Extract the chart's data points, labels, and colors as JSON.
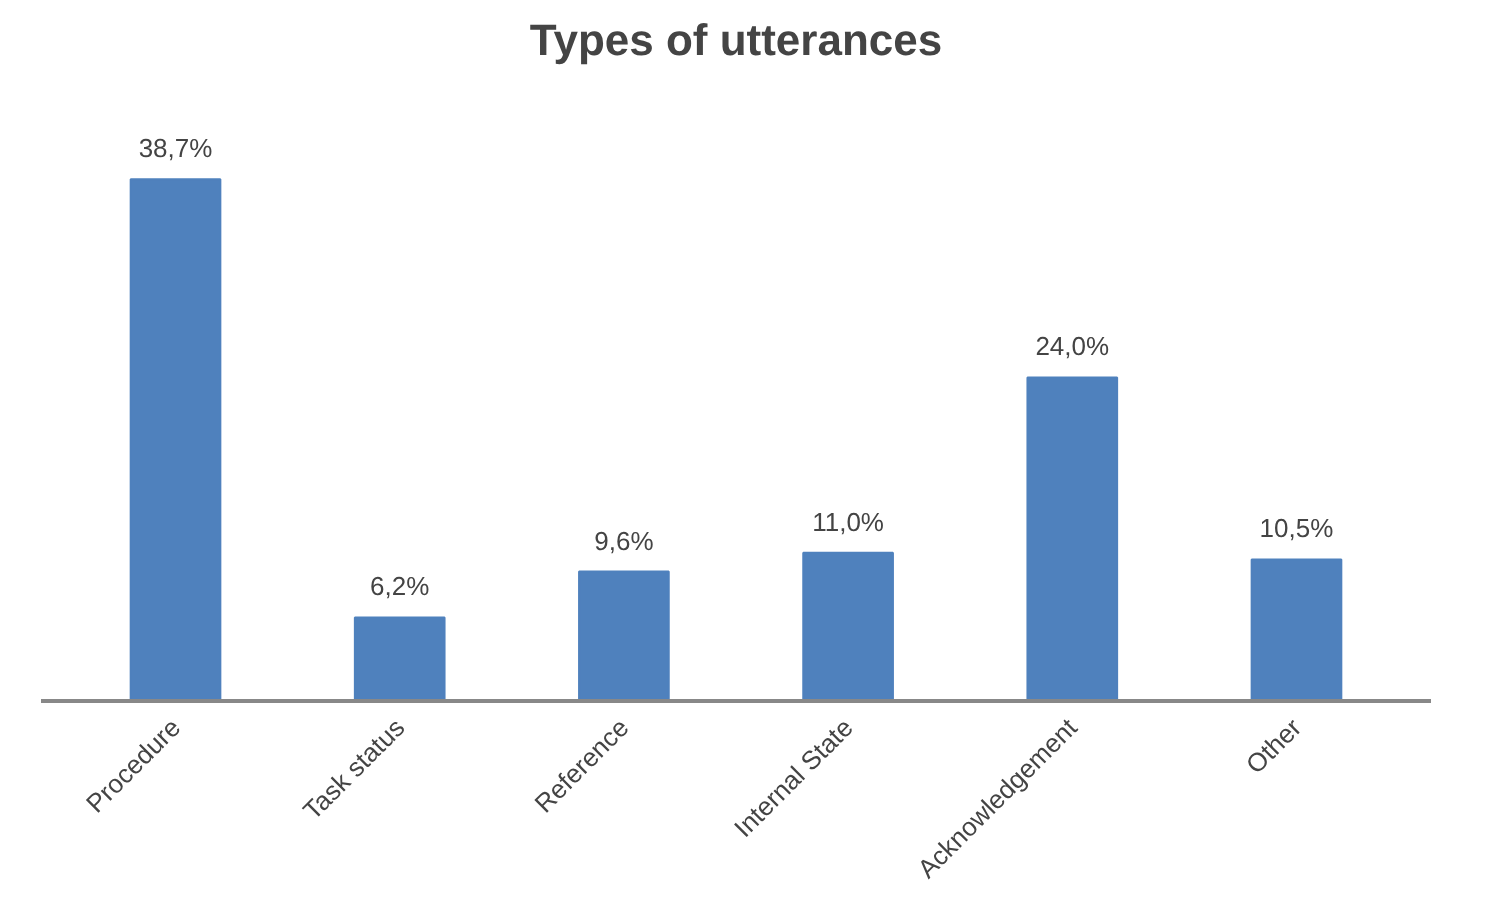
{
  "chart_data": {
    "type": "bar",
    "title": "Types of utterances",
    "categories": [
      "Procedure",
      "Task status",
      "Reference",
      "Internal State",
      "Acknowledgement",
      "Other"
    ],
    "values": [
      38.7,
      6.2,
      9.6,
      11.0,
      24.0,
      10.5
    ],
    "value_labels": [
      "38,7%",
      "6,2%",
      "9,6%",
      "11,0%",
      "24,0%",
      "10,5%"
    ],
    "color": "#4f81bd"
  }
}
